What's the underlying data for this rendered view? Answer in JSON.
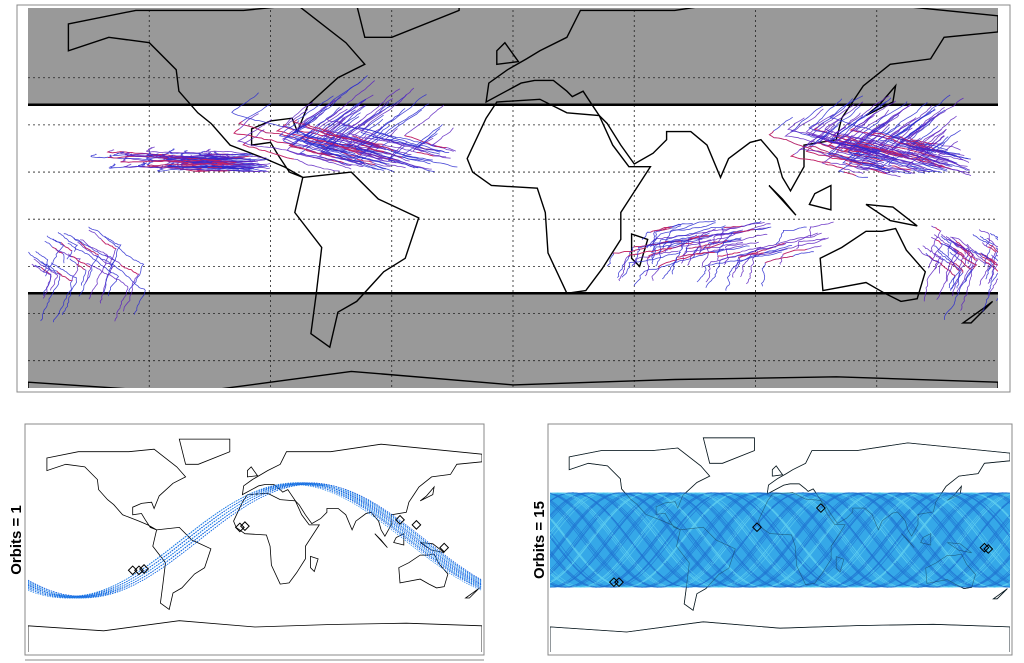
{
  "panels": [
    {
      "label": "Orbits = 1"
    },
    {
      "label": "Orbits = 15"
    }
  ]
}
